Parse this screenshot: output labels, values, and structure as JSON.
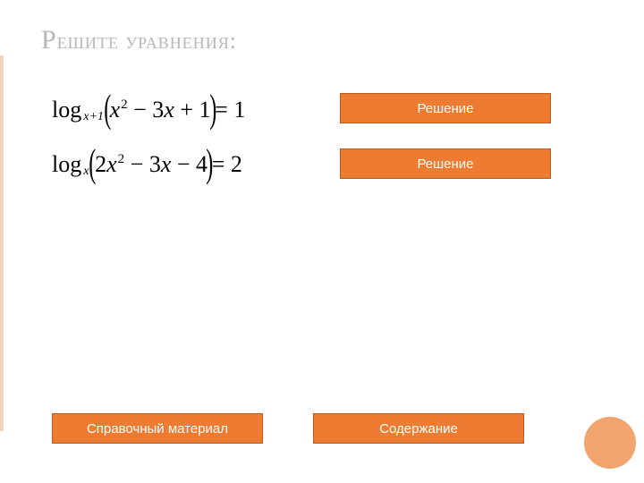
{
  "colors": {
    "title": "#b7b7b7",
    "button_bg": "#ee7b32",
    "button_border": "#c05a1a",
    "circle_bg": "#f2a46e",
    "left_bar": "#f3d3bd",
    "background": "#ffffff"
  },
  "title": {
    "text": "Решите уравнения:",
    "first_char": "Р",
    "rest": "ешите уравнения:"
  },
  "equations": {
    "eq1": {
      "log_label": "log",
      "subscript": "x+1",
      "inner": "x² − 3x + 1",
      "rhs": "= 1"
    },
    "eq2": {
      "log_label": "log",
      "subscript": "x",
      "inner": "2x² − 3x − 4",
      "rhs": "= 2"
    }
  },
  "buttons": {
    "solution1": "Решение",
    "solution2": "Решение",
    "reference": "Справочный материал",
    "contents": "Содержание"
  }
}
